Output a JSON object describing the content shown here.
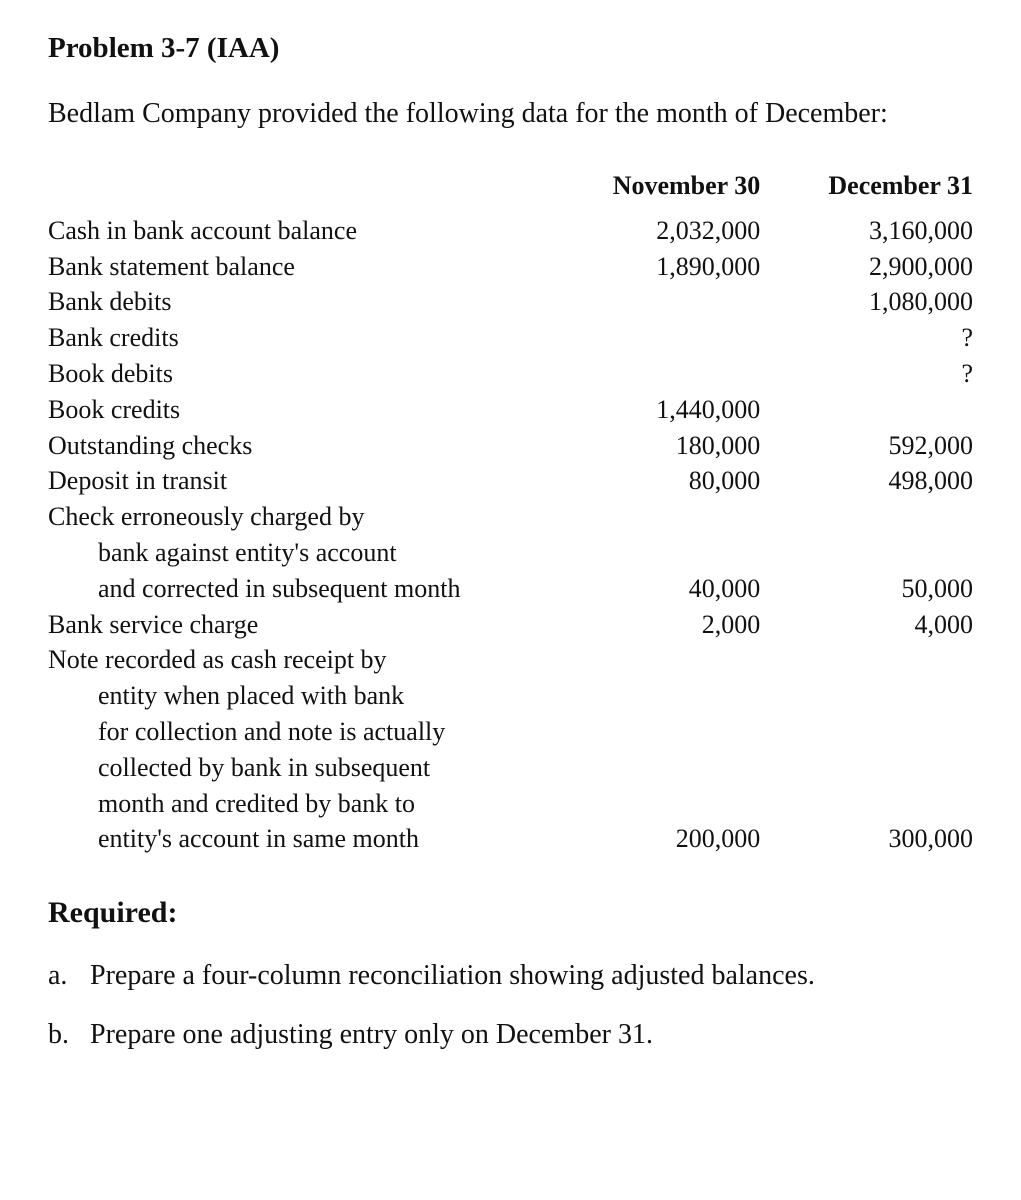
{
  "heading": "Problem 3-7 (IAA)",
  "intro": "Bedlam Company provided the following data for the month of December:",
  "table": {
    "headers": {
      "label": "",
      "nov": "November 30",
      "dec": "December 31"
    },
    "rows": [
      {
        "label": "Cash in bank account balance",
        "nov": "2,032,000",
        "dec": "3,160,000"
      },
      {
        "label": "Bank statement balance",
        "nov": "1,890,000",
        "dec": "2,900,000"
      },
      {
        "label": "Bank debits",
        "nov": "",
        "dec": "1,080,000"
      },
      {
        "label": "Bank credits",
        "nov": "",
        "dec": "?"
      },
      {
        "label": "Book debits",
        "nov": "",
        "dec": "?"
      },
      {
        "label": "Book credits",
        "nov": "1,440,000",
        "dec": ""
      },
      {
        "label": "Outstanding checks",
        "nov": "180,000",
        "dec": "592,000"
      },
      {
        "label": "Deposit in transit",
        "nov": "80,000",
        "dec": "498,000"
      },
      {
        "label": "Check erroneously charged by",
        "nov": "",
        "dec": ""
      },
      {
        "label_indent": "bank against entity's account",
        "nov": "",
        "dec": ""
      },
      {
        "label_indent": "and corrected in subsequent month",
        "nov": "40,000",
        "dec": "50,000"
      },
      {
        "label": "Bank service charge",
        "nov": "2,000",
        "dec": "4,000"
      },
      {
        "label": "Note recorded as cash receipt by",
        "nov": "",
        "dec": ""
      },
      {
        "label_indent": "entity when placed with bank",
        "nov": "",
        "dec": ""
      },
      {
        "label_indent": "for collection and note is actually",
        "nov": "",
        "dec": ""
      },
      {
        "label_indent": "collected by bank in subsequent",
        "nov": "",
        "dec": ""
      },
      {
        "label_indent": "month and credited by bank to",
        "nov": "",
        "dec": ""
      },
      {
        "label_indent": "entity's account in same month",
        "nov": "200,000",
        "dec": "300,000"
      }
    ]
  },
  "required_heading": "Required:",
  "requirements": [
    {
      "letter": "a.",
      "text": "Prepare a four-column reconciliation showing adjusted balances."
    },
    {
      "letter": "b.",
      "text": "Prepare one adjusting entry only on December 31."
    }
  ],
  "style": {
    "text_color": "#111111",
    "background_color": "#ffffff",
    "base_font_size_pt": 20,
    "heading_font_size_pt": 22,
    "font_family": "Century Schoolbook"
  }
}
